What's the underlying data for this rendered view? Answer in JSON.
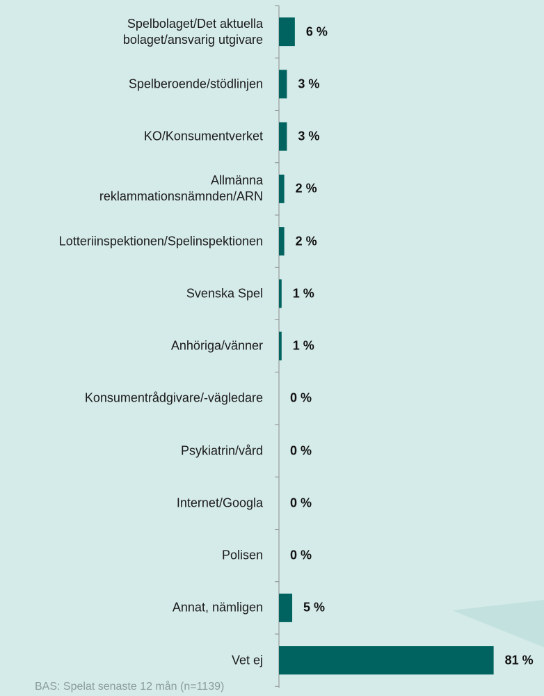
{
  "chart_data": {
    "type": "barh",
    "categories": [
      "Spelbolaget/Det aktuella\nbolaget/ansvarig utgivare",
      "Spelberoende/stödlinjen",
      "KO/Konsumentverket",
      "Allmänna\nreklammationsnämnden/ARN",
      "Lotteriinspektionen/Spelinspektionen",
      "Svenska Spel",
      "Anhöriga/vänner",
      "Konsumentrådgivare/-vägledare",
      "Psykiatrin/vård",
      "Internet/Googla",
      "Polisen",
      "Annat, nämligen",
      "Vet ej"
    ],
    "values": [
      6,
      3,
      3,
      2,
      2,
      1,
      1,
      0,
      0,
      0,
      0,
      5,
      81
    ],
    "value_labels": [
      "6 %",
      "3 %",
      "3 %",
      "2 %",
      "2 %",
      "1 %",
      "1 %",
      "0 %",
      "0 %",
      "0 %",
      "0 %",
      "5 %",
      "81 %"
    ],
    "color": "#00635f",
    "footnote": "BAS: Spelat senaste 12 mån (n=1139)"
  }
}
